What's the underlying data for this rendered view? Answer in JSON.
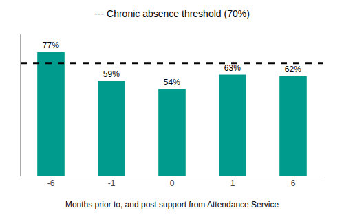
{
  "chart_data": {
    "type": "bar",
    "title": "--- Chronic absence threshold (70%)",
    "xlabel": "Months prior to, and post support from Attendance Service",
    "categories": [
      "-6",
      "-1",
      "0",
      "1",
      "6"
    ],
    "values": [
      77,
      59,
      54,
      63,
      62
    ],
    "value_labels": [
      "77%",
      "59%",
      "54%",
      "63%",
      "62%"
    ],
    "data_labels": true,
    "color": "#009B8D",
    "threshold": 70,
    "ylim": [
      0,
      88
    ],
    "grid": false,
    "tick_labels": "x"
  }
}
